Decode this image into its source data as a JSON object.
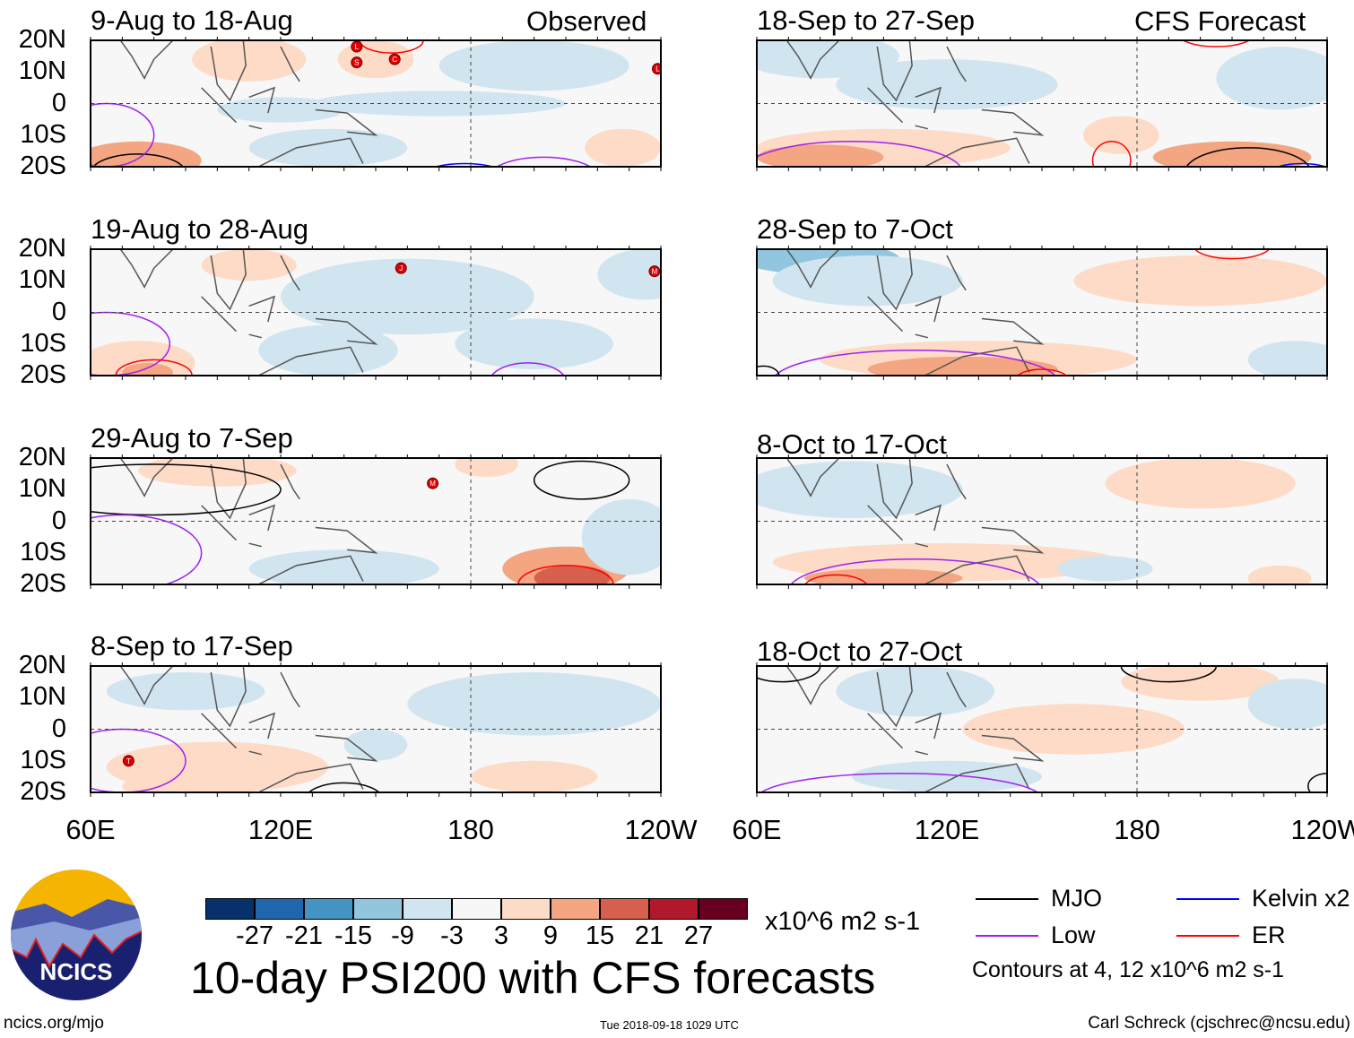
{
  "chart_data": {
    "type": "heatmap",
    "title": "10-day PSI200 with CFS forecasts",
    "variable": "PSI200 anomaly",
    "units": "x10^6 m2 s-1",
    "column_labels": [
      "Observed",
      "CFS Forecast"
    ],
    "lat_ticks": [
      "20N",
      "10N",
      "0",
      "10S",
      "20S"
    ],
    "lon_ticks": [
      "60E",
      "120E",
      "180",
      "120W"
    ],
    "lon_range": [
      60,
      240
    ],
    "lat_range": [
      -20,
      20
    ],
    "colorbar": {
      "ticks": [
        "-27",
        "-21",
        "-15",
        "-9",
        "-3",
        "3",
        "9",
        "15",
        "21",
        "27"
      ],
      "colors": [
        "#08306b",
        "#2166ac",
        "#4393c3",
        "#92c5de",
        "#d1e5f0",
        "#f7f7f7",
        "#fddbc7",
        "#f4a582",
        "#d6604d",
        "#b2182b",
        "#67001f"
      ],
      "units_label": "x10^6 m2 s-1"
    },
    "legend": [
      {
        "label": "MJO",
        "color": "#000000"
      },
      {
        "label": "Kelvin x2",
        "color": "#0000ff"
      },
      {
        "label": "Low",
        "color": "#a020f0"
      },
      {
        "label": "ER",
        "color": "#ff0000"
      }
    ],
    "contour_note": "Contours at 4, 12 x10^6 m2 s-1",
    "panels": [
      {
        "title": "9-Aug to 18-Aug",
        "source": "Observed",
        "fields": [
          [
            110,
            14,
            18,
            7,
            6
          ],
          [
            150,
            14,
            12,
            6,
            6
          ],
          [
            75,
            -18,
            20,
            6,
            12
          ],
          [
            228,
            -14,
            12,
            6,
            6
          ],
          [
            200,
            12,
            30,
            8,
            -6
          ],
          [
            135,
            -14,
            25,
            6,
            -6
          ],
          [
            170,
            0,
            40,
            4,
            -3
          ],
          [
            120,
            -2,
            20,
            4,
            -3
          ]
        ],
        "contours": [
          [
            75,
            -22,
            15,
            6,
            "#000000"
          ],
          [
            65,
            -10,
            15,
            10,
            "#a020f0"
          ],
          [
            178,
            -24,
            15,
            5,
            "#0000ff"
          ],
          [
            203,
            -24,
            18,
            7,
            "#a020f0"
          ],
          [
            155,
            20,
            10,
            4,
            "#ff0000"
          ]
        ],
        "storms": [
          [
            144,
            18,
            "L"
          ],
          [
            144,
            13,
            "S"
          ],
          [
            156,
            14,
            "C"
          ],
          [
            239,
            11,
            "L"
          ]
        ]
      },
      {
        "title": "18-Sep to 27-Sep",
        "source": "CFS Forecast",
        "fields": [
          [
            100,
            -14,
            40,
            6,
            9
          ],
          [
            80,
            -17,
            20,
            4,
            15
          ],
          [
            210,
            -17,
            25,
            5,
            12
          ],
          [
            175,
            -10,
            12,
            6,
            6
          ],
          [
            80,
            15,
            25,
            7,
            -6
          ],
          [
            120,
            6,
            35,
            8,
            -3
          ],
          [
            225,
            8,
            20,
            10,
            -3
          ]
        ],
        "contours": [
          [
            90,
            -22,
            35,
            10,
            "#a020f0"
          ],
          [
            172,
            -18,
            6,
            6,
            "#ff0000"
          ],
          [
            215,
            -22,
            20,
            8,
            "#000000"
          ],
          [
            205,
            22,
            12,
            4,
            "#ff0000"
          ],
          [
            232,
            -22,
            10,
            3,
            "#0000ff"
          ]
        ],
        "storms": []
      },
      {
        "title": "19-Aug to 28-Aug",
        "source": "Observed",
        "fields": [
          [
            75,
            -16,
            18,
            7,
            9
          ],
          [
            78,
            -19,
            8,
            3,
            15
          ],
          [
            110,
            15,
            15,
            5,
            6
          ],
          [
            135,
            -12,
            22,
            8,
            -6
          ],
          [
            160,
            5,
            40,
            12,
            -3
          ],
          [
            235,
            12,
            15,
            8,
            -6
          ],
          [
            200,
            -10,
            25,
            8,
            -3
          ]
        ],
        "contours": [
          [
            65,
            -10,
            20,
            10,
            "#a020f0"
          ],
          [
            80,
            -20,
            12,
            5,
            "#ff0000"
          ],
          [
            150,
            -22,
            6,
            2,
            "#0000ff"
          ],
          [
            198,
            -22,
            12,
            6,
            "#a020f0"
          ]
        ],
        "storms": [
          [
            158,
            14,
            "J"
          ],
          [
            238,
            13,
            "M"
          ]
        ]
      },
      {
        "title": "28-Sep to 7-Oct",
        "source": "CFS Forecast",
        "fields": [
          [
            130,
            -15,
            50,
            6,
            9
          ],
          [
            125,
            -18,
            30,
            4,
            15
          ],
          [
            200,
            10,
            40,
            8,
            6
          ],
          [
            80,
            17,
            25,
            5,
            -9
          ],
          [
            95,
            10,
            30,
            8,
            -3
          ],
          [
            230,
            -15,
            15,
            6,
            -3
          ]
        ],
        "contours": [
          [
            110,
            -22,
            45,
            10,
            "#a020f0"
          ],
          [
            150,
            -21,
            8,
            3,
            "#ff0000"
          ],
          [
            210,
            21,
            12,
            4,
            "#ff0000"
          ],
          [
            62,
            -20,
            5,
            3,
            "#000000"
          ]
        ],
        "storms": []
      },
      {
        "title": "29-Aug to 7-Sep",
        "source": "Observed",
        "fields": [
          [
            100,
            16,
            25,
            5,
            6
          ],
          [
            210,
            -15,
            20,
            7,
            12
          ],
          [
            212,
            -18,
            12,
            4,
            18
          ],
          [
            140,
            -15,
            30,
            6,
            -6
          ],
          [
            230,
            -5,
            15,
            12,
            -3
          ],
          [
            185,
            18,
            10,
            4,
            6
          ]
        ],
        "contours": [
          [
            80,
            10,
            40,
            8,
            "#000000"
          ],
          [
            215,
            13,
            15,
            6,
            "#000000"
          ],
          [
            70,
            -10,
            25,
            12,
            "#a020f0"
          ],
          [
            210,
            -20,
            15,
            6,
            "#ff0000"
          ]
        ],
        "storms": [
          [
            168,
            12,
            "M"
          ]
        ]
      },
      {
        "title": "8-Oct to 17-Oct",
        "source": "CFS Forecast",
        "fields": [
          [
            120,
            -13,
            55,
            6,
            6
          ],
          [
            100,
            -18,
            25,
            3,
            12
          ],
          [
            200,
            12,
            30,
            8,
            6
          ],
          [
            90,
            10,
            35,
            9,
            -3
          ],
          [
            170,
            -15,
            15,
            4,
            -3
          ],
          [
            225,
            -18,
            10,
            4,
            6
          ]
        ],
        "contours": [
          [
            110,
            -22,
            40,
            10,
            "#a020f0"
          ],
          [
            85,
            -21,
            10,
            4,
            "#ff0000"
          ]
        ],
        "storms": []
      },
      {
        "title": "8-Sep to 17-Sep",
        "source": "Observed",
        "fields": [
          [
            100,
            -12,
            35,
            8,
            6
          ],
          [
            80,
            -18,
            10,
            3,
            9
          ],
          [
            200,
            8,
            40,
            10,
            -3
          ],
          [
            150,
            -5,
            10,
            5,
            -6
          ],
          [
            200,
            -15,
            20,
            5,
            6
          ],
          [
            90,
            12,
            25,
            6,
            -3
          ]
        ],
        "contours": [
          [
            70,
            -10,
            20,
            10,
            "#a020f0"
          ],
          [
            140,
            -22,
            12,
            5,
            "#000000"
          ],
          [
            177,
            -22,
            5,
            2,
            "#000000"
          ]
        ],
        "storms": [
          [
            72,
            -10,
            "T"
          ]
        ]
      },
      {
        "title": "18-Oct to 27-Oct",
        "source": "CFS Forecast",
        "fields": [
          [
            160,
            0,
            35,
            8,
            6
          ],
          [
            200,
            15,
            25,
            6,
            6
          ],
          [
            110,
            12,
            25,
            8,
            -6
          ],
          [
            230,
            8,
            15,
            8,
            -3
          ],
          [
            120,
            -15,
            30,
            5,
            -3
          ]
        ],
        "contours": [
          [
            190,
            20,
            15,
            5,
            "#000000"
          ],
          [
            105,
            -22,
            45,
            8,
            "#a020f0"
          ],
          [
            68,
            20,
            12,
            5,
            "#000000"
          ],
          [
            240,
            -18,
            6,
            4,
            "#000000"
          ]
        ],
        "storms": []
      }
    ]
  },
  "footer": {
    "logo_text": "NCICS",
    "site": "ncics.org/mjo",
    "timestamp": "Tue 2018-09-18 1029 UTC",
    "author": "Carl Schreck (cjschrec@ncsu.edu)"
  }
}
